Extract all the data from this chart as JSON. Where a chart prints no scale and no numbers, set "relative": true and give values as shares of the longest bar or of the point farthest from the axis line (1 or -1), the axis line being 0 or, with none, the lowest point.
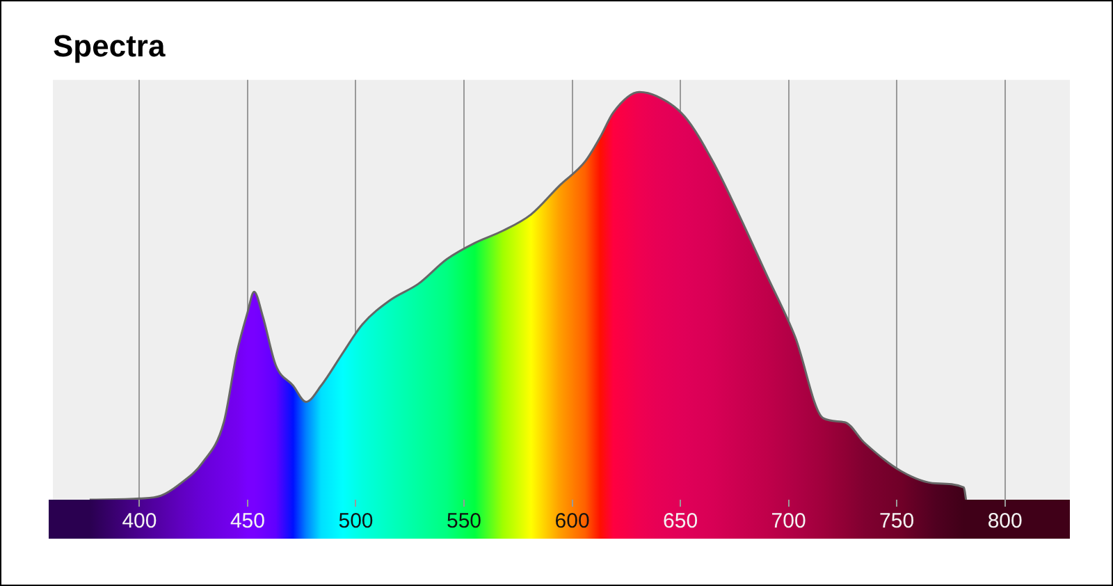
{
  "chart_data": {
    "type": "area",
    "title": "Spectra",
    "relative": true,
    "grid": "x",
    "legend": false,
    "marker": "none",
    "xlim": [
      360,
      830
    ],
    "xticks": [
      400,
      450,
      500,
      550,
      600,
      650,
      700,
      750,
      800
    ],
    "series": [
      {
        "color": "#666666",
        "x": [
          377,
          400,
          410,
          419,
          429,
          439,
          445,
          450,
          453,
          457,
          463,
          471,
          477,
          484,
          494,
          503,
          516,
          529,
          542,
          555,
          568,
          581,
          594,
          606,
          613,
          619,
          631,
          639,
          652,
          665,
          677,
          690,
          703,
          716,
          726,
          735,
          752,
          768,
          781,
          782
        ],
        "values": [
          0,
          0.003,
          0.01,
          0.04,
          0.09,
          0.19,
          0.36,
          0.46,
          0.51,
          0.45,
          0.33,
          0.28,
          0.24,
          0.28,
          0.36,
          0.43,
          0.49,
          0.53,
          0.59,
          0.63,
          0.66,
          0.7,
          0.77,
          0.83,
          0.89,
          0.95,
          1,
          0.99,
          0.94,
          0.83,
          0.7,
          0.55,
          0.4,
          0.2,
          0.19,
          0.14,
          0.07,
          0.04,
          0.03,
          0
        ],
        "colors": [
          "#2a0050",
          "#4a0090",
          "#5500a8",
          "#6000c0",
          "#6800d8",
          "#7000e8",
          "#7400f0",
          "#7800ff",
          "#7800ff",
          "#7000ff",
          "#6000ff",
          "#0010ff",
          "#0080ff",
          "#00e0ff",
          "#00ffff",
          "#00ffe0",
          "#00ffc0",
          "#00ffa0",
          "#00ff80",
          "#00ff40",
          "#a0ff00",
          "#ffff00",
          "#ffa000",
          "#ff6000",
          "#ff1000",
          "#ff0040",
          "#f00050",
          "#e80055",
          "#e00058",
          "#d80055",
          "#cc0050",
          "#c0004a",
          "#b00045",
          "#a0003c",
          "#900035",
          "#800030",
          "#700028",
          "#500020",
          "#400018",
          "#400018"
        ]
      }
    ]
  }
}
